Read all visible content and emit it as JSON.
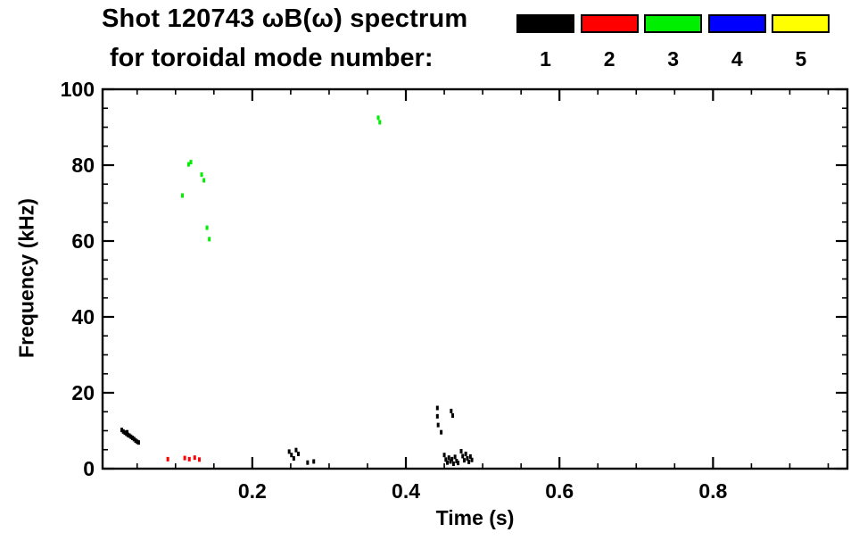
{
  "header": {
    "title": "Shot 120743 ωB(ω) spectrum",
    "subtitle": "for toroidal mode number:"
  },
  "legend": {
    "items": [
      {
        "mode": "1",
        "color": "#000000"
      },
      {
        "mode": "2",
        "color": "#ff0000"
      },
      {
        "mode": "3",
        "color": "#00ee00"
      },
      {
        "mode": "4",
        "color": "#0000ff"
      },
      {
        "mode": "5",
        "color": "#ffff00"
      }
    ]
  },
  "axes": {
    "x": {
      "label": "Time (s)",
      "min": 0.005,
      "max": 0.975,
      "major_ticks": [
        0.2,
        0.4,
        0.6,
        0.8
      ],
      "minor_interval": 0.05
    },
    "y": {
      "label": "Frequency (kHz)",
      "min": 0,
      "max": 100,
      "major_ticks": [
        0,
        20,
        40,
        60,
        80,
        100
      ],
      "minor_interval": 5
    }
  },
  "chart_data": {
    "type": "scatter",
    "title": "Shot 120743 ωB(ω) spectrum for toroidal mode number: 1 2 3 4 5",
    "xlabel": "Time (s)",
    "ylabel": "Frequency (kHz)",
    "xlim": [
      0.005,
      0.975
    ],
    "ylim": [
      0,
      100
    ],
    "grid": false,
    "legend_position": "top-right",
    "series": [
      {
        "name": "mode 1",
        "color": "#000000",
        "points": [
          [
            0.03,
            10.2
          ],
          [
            0.032,
            9.8
          ],
          [
            0.034,
            9.5
          ],
          [
            0.036,
            9.2
          ],
          [
            0.037,
            9.6
          ],
          [
            0.038,
            8.9
          ],
          [
            0.04,
            8.7
          ],
          [
            0.042,
            8.4
          ],
          [
            0.044,
            8.1
          ],
          [
            0.046,
            7.8
          ],
          [
            0.048,
            7.4
          ],
          [
            0.05,
            7.1
          ],
          [
            0.052,
            6.9
          ],
          [
            0.248,
            4.5
          ],
          [
            0.251,
            3.6
          ],
          [
            0.254,
            2.7
          ],
          [
            0.257,
            4.9
          ],
          [
            0.26,
            3.9
          ],
          [
            0.272,
            1.6
          ],
          [
            0.28,
            1.9
          ],
          [
            0.441,
            16.0
          ],
          [
            0.441,
            13.8
          ],
          [
            0.442,
            11.5
          ],
          [
            0.446,
            9.6
          ],
          [
            0.459,
            15.2
          ],
          [
            0.461,
            14.0
          ],
          [
            0.45,
            3.6
          ],
          [
            0.452,
            2.4
          ],
          [
            0.454,
            1.6
          ],
          [
            0.456,
            2.9
          ],
          [
            0.458,
            1.9
          ],
          [
            0.46,
            2.5
          ],
          [
            0.462,
            1.3
          ],
          [
            0.464,
            3.1
          ],
          [
            0.466,
            2.0
          ],
          [
            0.468,
            1.5
          ],
          [
            0.472,
            4.6
          ],
          [
            0.474,
            3.3
          ],
          [
            0.476,
            2.2
          ],
          [
            0.478,
            3.9
          ],
          [
            0.48,
            2.7
          ],
          [
            0.482,
            1.8
          ],
          [
            0.484,
            3.2
          ],
          [
            0.486,
            2.3
          ]
        ]
      },
      {
        "name": "mode 2",
        "color": "#ff0000",
        "points": [
          [
            0.09,
            2.5
          ],
          [
            0.112,
            2.8
          ],
          [
            0.118,
            2.5
          ],
          [
            0.125,
            2.9
          ],
          [
            0.131,
            2.4
          ]
        ]
      },
      {
        "name": "mode 3",
        "color": "#00ee00",
        "points": [
          [
            0.109,
            72.0
          ],
          [
            0.117,
            80.2
          ],
          [
            0.12,
            80.8
          ],
          [
            0.134,
            77.5
          ],
          [
            0.137,
            76.0
          ],
          [
            0.141,
            63.5
          ],
          [
            0.144,
            60.5
          ],
          [
            0.364,
            92.5
          ],
          [
            0.366,
            91.3
          ]
        ]
      },
      {
        "name": "mode 4",
        "color": "#0000ff",
        "points": []
      },
      {
        "name": "mode 5",
        "color": "#ffff00",
        "points": []
      }
    ]
  }
}
